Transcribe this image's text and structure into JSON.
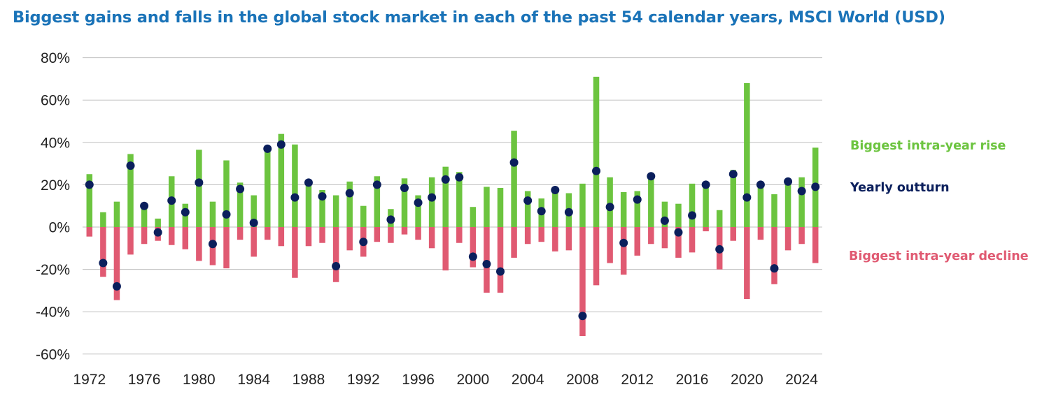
{
  "title": "Biggest gains and falls in the global stock market in each of the past 54 calendar years, MSCI World (USD)",
  "colors": {
    "title": "#1a73b8",
    "rise": "#6cc43f",
    "decline": "#e05a72",
    "outturn": "#0b1f5c",
    "grid": "#bfbfbf"
  },
  "chart_data": {
    "type": "bar",
    "title": "Biggest gains and falls in the global stock market in each of the past 54 calendar years, MSCI World (USD)",
    "ylim": [
      -60,
      80
    ],
    "y_ticks": [
      80,
      60,
      40,
      20,
      0,
      -20,
      -40,
      -60
    ],
    "y_tick_labels": [
      "80%",
      "60%",
      "40%",
      "20%",
      "0%",
      "-20%",
      "-40%",
      "-60%"
    ],
    "x_tick_labels": [
      "1972",
      "1976",
      "1980",
      "1984",
      "1988",
      "1992",
      "1996",
      "2000",
      "2004",
      "2008",
      "2012",
      "2016",
      "2020",
      "2024"
    ],
    "grid": true,
    "legend_position": "right",
    "categories": [
      1972,
      1973,
      1974,
      1975,
      1976,
      1977,
      1978,
      1979,
      1980,
      1981,
      1982,
      1983,
      1984,
      1985,
      1986,
      1987,
      1988,
      1989,
      1990,
      1991,
      1992,
      1993,
      1994,
      1995,
      1996,
      1997,
      1998,
      1999,
      2000,
      2001,
      2002,
      2003,
      2004,
      2005,
      2006,
      2007,
      2008,
      2009,
      2010,
      2011,
      2012,
      2013,
      2014,
      2015,
      2016,
      2017,
      2018,
      2019,
      2020,
      2021,
      2022,
      2023,
      2024,
      2025
    ],
    "series": [
      {
        "name": "Biggest intra-year rise",
        "values": [
          25,
          7,
          12,
          34.5,
          9,
          4,
          24,
          11,
          36.5,
          12,
          31.5,
          21,
          15,
          37,
          44,
          39,
          21,
          17.5,
          15,
          21.5,
          10,
          24,
          8.5,
          23,
          15,
          23.5,
          28.5,
          26,
          9.5,
          19,
          18.5,
          45.5,
          17,
          13.5,
          18.5,
          16,
          20.5,
          71,
          23.5,
          16.5,
          17,
          24,
          12,
          11,
          20.5,
          20,
          8,
          27,
          68,
          19.5,
          15.5,
          21,
          23.5,
          37.5
        ]
      },
      {
        "name": "Biggest intra-year decline",
        "values": [
          -4.5,
          -23.5,
          -34.5,
          -13,
          -8,
          -6.5,
          -8.5,
          -10.5,
          -16,
          -18,
          -19.5,
          -6,
          -14,
          -6,
          -9,
          -24,
          -9,
          -7.5,
          -26,
          -11,
          -14,
          -7,
          -7.5,
          -3.5,
          -6,
          -10,
          -20.5,
          -7.5,
          -19,
          -31,
          -31,
          -14.5,
          -8,
          -7,
          -11.5,
          -11,
          -51.5,
          -27.5,
          -17,
          -22.5,
          -13.5,
          -8,
          -10,
          -14.5,
          -12,
          -2,
          -20,
          -6.5,
          -34,
          -6,
          -27,
          -11,
          -8,
          -17
        ]
      },
      {
        "name": "Yearly outturn",
        "values": [
          20,
          -17,
          -28,
          29,
          10,
          -2.5,
          12.5,
          7,
          21,
          -8,
          6,
          18,
          2,
          37,
          39,
          14,
          21,
          14.5,
          -18.5,
          16,
          -7,
          20,
          3.5,
          18.5,
          11.5,
          14,
          22.5,
          23.5,
          -14,
          -17.5,
          -21,
          30.5,
          12.5,
          7.5,
          17.5,
          7,
          -42,
          26.5,
          9.5,
          -7.5,
          13,
          24,
          3,
          -2.5,
          5.5,
          20,
          -10.5,
          25,
          14,
          20,
          -19.5,
          21.5,
          17,
          19
        ]
      }
    ]
  }
}
